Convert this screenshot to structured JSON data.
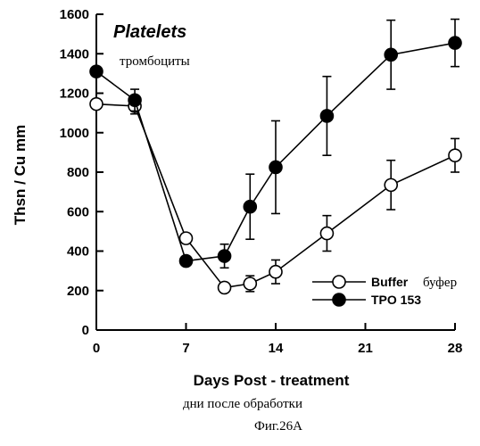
{
  "chart_data": {
    "type": "line",
    "title": "Platelets",
    "subtitle": "тромбоциты",
    "xlabel": "Days Post - treatment",
    "xlabel_translation": "дни после обработки",
    "ylabel": "Thsn / Cu mm",
    "caption": "Фиг.26А",
    "xlim": [
      0,
      28
    ],
    "ylim": [
      0,
      1600
    ],
    "x_ticks": [
      0,
      7,
      14,
      21,
      28
    ],
    "y_ticks": [
      0,
      200,
      400,
      600,
      800,
      1000,
      1200,
      1400,
      1600
    ],
    "legend_position": "bottom-right",
    "series": [
      {
        "name": "Buffer",
        "name_translation": "буфер",
        "marker": "open-circle",
        "points": [
          {
            "x": 0,
            "y": 1145,
            "err": 0
          },
          {
            "x": 3,
            "y": 1135,
            "err": 40
          },
          {
            "x": 7,
            "y": 465,
            "err": 0
          },
          {
            "x": 10,
            "y": 215,
            "err": 0
          },
          {
            "x": 12,
            "y": 235,
            "err": 40
          },
          {
            "x": 14,
            "y": 295,
            "err": 60
          },
          {
            "x": 18,
            "y": 490,
            "err": 90
          },
          {
            "x": 23,
            "y": 735,
            "err": 125
          },
          {
            "x": 28,
            "y": 885,
            "err": 85
          }
        ]
      },
      {
        "name": "TPO 153",
        "marker": "filled-circle",
        "points": [
          {
            "x": 0,
            "y": 1310,
            "err": 0
          },
          {
            "x": 3,
            "y": 1165,
            "err": 55
          },
          {
            "x": 7,
            "y": 350,
            "err": 0
          },
          {
            "x": 10,
            "y": 375,
            "err": 60
          },
          {
            "x": 12,
            "y": 625,
            "err": 165
          },
          {
            "x": 14,
            "y": 825,
            "err": 235
          },
          {
            "x": 18,
            "y": 1085,
            "err": 200
          },
          {
            "x": 23,
            "y": 1395,
            "err": 175
          },
          {
            "x": 28,
            "y": 1455,
            "err": 120
          }
        ]
      }
    ]
  }
}
